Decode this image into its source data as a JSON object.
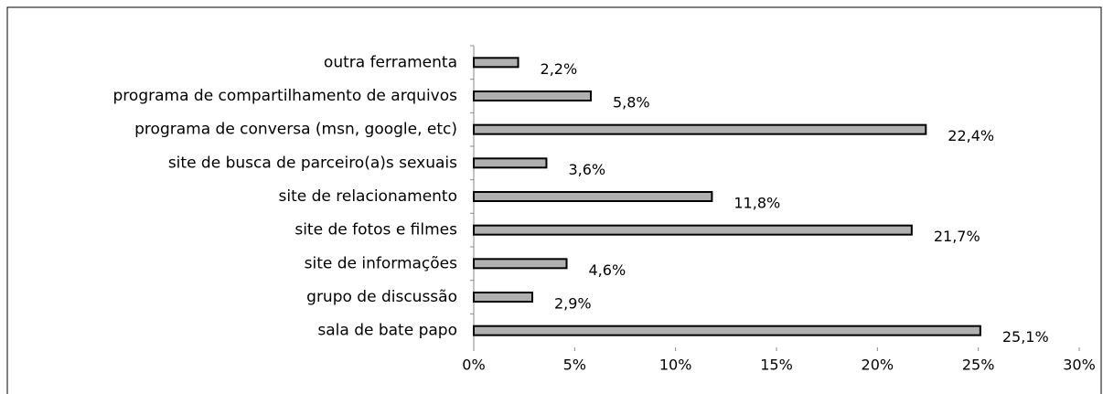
{
  "chart_data": {
    "type": "bar",
    "orientation": "horizontal",
    "categories": [
      "outra ferramenta",
      "programa de compartilhamento de arquivos",
      "programa de conversa (msn, google, etc)",
      "site de busca de parceiro(a)s sexuais",
      "site de relacionamento",
      "site de fotos e filmes",
      "site de informações",
      "grupo de discussão",
      "sala de bate papo"
    ],
    "values": [
      2.2,
      5.8,
      22.4,
      3.6,
      11.8,
      21.7,
      4.6,
      2.9,
      25.1
    ],
    "value_labels": [
      "2,2%",
      "5,8%",
      "22,4%",
      "3,6%",
      "11,8%",
      "21,7%",
      "4,6%",
      "2,9%",
      "25,1%"
    ],
    "color": "#b0b0b0",
    "xlim": [
      0,
      30
    ],
    "xticks": [
      {
        "value": 0,
        "label": "0%"
      },
      {
        "value": 5,
        "label": "5%"
      },
      {
        "value": 10,
        "label": "10%"
      },
      {
        "value": 15,
        "label": "15%"
      },
      {
        "value": 20,
        "label": "20%"
      },
      {
        "value": 25,
        "label": "25%"
      },
      {
        "value": 30,
        "label": "30%"
      }
    ],
    "grid": false
  }
}
